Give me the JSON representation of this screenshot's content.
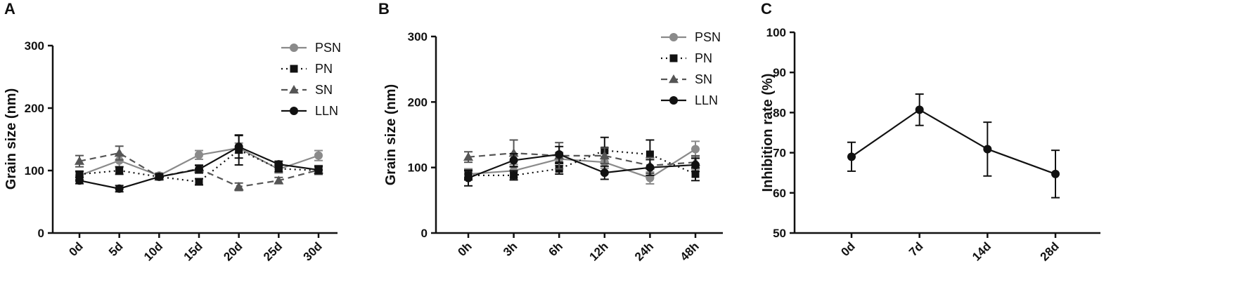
{
  "chart_data": [
    {
      "panel_label": "A",
      "type": "line",
      "title": "",
      "xlabel": "",
      "ylabel": "Grain size (nm)",
      "categories": [
        "0d",
        "5d",
        "10d",
        "15d",
        "20d",
        "25d",
        "30d"
      ],
      "yticks": [
        "0",
        "100",
        "200",
        "300"
      ],
      "ylim": [
        0,
        300
      ],
      "grid": false,
      "legend_position": "top-right",
      "series": [
        {
          "name": "PSN",
          "marker": "circle",
          "line": "solid",
          "color": "#8a8a8a",
          "values": [
            92,
            116,
            92,
            125,
            136,
            102,
            124
          ],
          "errors": [
            6,
            10,
            4,
            7,
            8,
            6,
            8
          ]
        },
        {
          "name": "PN",
          "marker": "square",
          "line": "dotted",
          "color": "#111111",
          "values": [
            94,
            100,
            90,
            82,
            133,
            103,
            100
          ],
          "errors": [
            5,
            6,
            4,
            5,
            24,
            5,
            6
          ]
        },
        {
          "name": "SN",
          "marker": "triangle",
          "line": "dashed",
          "color": "#555555",
          "values": [
            115,
            128,
            90,
            103,
            74,
            84,
            101
          ],
          "errors": [
            9,
            11,
            4,
            6,
            6,
            5,
            7
          ]
        },
        {
          "name": "LLN",
          "marker": "circle",
          "line": "solid",
          "color": "#111111",
          "values": [
            84,
            71,
            90,
            102,
            138,
            110,
            101
          ],
          "errors": [
            5,
            5,
            4,
            6,
            18,
            5,
            6
          ]
        }
      ]
    },
    {
      "panel_label": "B",
      "type": "line",
      "title": "",
      "xlabel": "",
      "ylabel": "Grain size (nm)",
      "categories": [
        "0h",
        "3h",
        "6h",
        "12h",
        "24h",
        "48h"
      ],
      "yticks": [
        "0",
        "100",
        "200",
        "300"
      ],
      "ylim": [
        0,
        300
      ],
      "grid": false,
      "legend_position": "top-right",
      "series": [
        {
          "name": "PSN",
          "marker": "circle",
          "line": "solid",
          "color": "#8a8a8a",
          "values": [
            90,
            95,
            113,
            108,
            84,
            128
          ],
          "errors": [
            8,
            10,
            10,
            9,
            9,
            12
          ]
        },
        {
          "name": "PN",
          "marker": "square",
          "line": "dotted",
          "color": "#111111",
          "values": [
            88,
            88,
            98,
            126,
            120,
            90
          ],
          "errors": [
            7,
            7,
            8,
            20,
            22,
            10
          ]
        },
        {
          "name": "SN",
          "marker": "triangle",
          "line": "dashed",
          "color": "#555555",
          "values": [
            116,
            122,
            118,
            118,
            103,
            108
          ],
          "errors": [
            8,
            20,
            20,
            12,
            12,
            10
          ]
        },
        {
          "name": "LLN",
          "marker": "circle",
          "line": "solid",
          "color": "#111111",
          "values": [
            84,
            111,
            120,
            92,
            100,
            104
          ],
          "errors": [
            12,
            10,
            12,
            10,
            12,
            10
          ]
        }
      ]
    },
    {
      "panel_label": "C",
      "type": "line",
      "title": "",
      "xlabel": "",
      "ylabel": "Inhibition rate (%)",
      "categories": [
        "0d",
        "7d",
        "14d",
        "28d"
      ],
      "yticks": [
        "50",
        "60",
        "70",
        "80",
        "90",
        "100"
      ],
      "ylim": [
        50,
        100
      ],
      "grid": false,
      "legend_position": "none",
      "series": [
        {
          "name": "",
          "marker": "circle",
          "line": "solid",
          "color": "#111111",
          "values": [
            69,
            80.7,
            70.9,
            64.7
          ],
          "errors": [
            3.6,
            3.9,
            6.7,
            5.9
          ]
        }
      ]
    }
  ]
}
